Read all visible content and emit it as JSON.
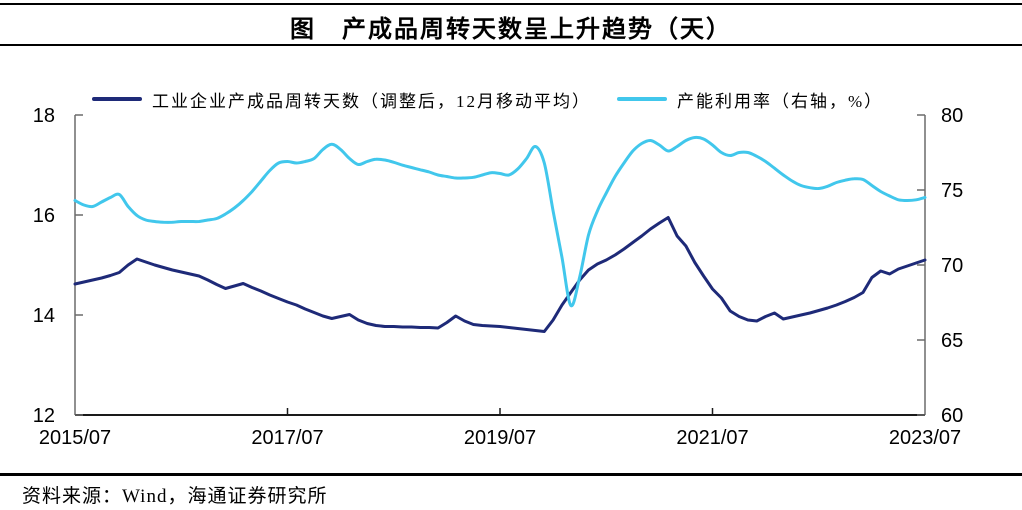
{
  "title": "图　产成品周转天数呈上升趋势（天）",
  "source": "资料来源：Wind，海通证券研究所",
  "colors": {
    "turnover_line": "#1e2a78",
    "capacity_line": "#41c7ec",
    "side_axis": "#6b6b6b",
    "bottom_axis": "#1a1a1a",
    "rule": "#000000"
  },
  "chart_data": {
    "type": "line",
    "title": "图　产成品周转天数呈上升趋势（天）",
    "x_start": "2015/07",
    "x_end": "2023/07",
    "x_freq": "monthly",
    "categories": [
      "2015/07",
      "2017/07",
      "2019/07",
      "2021/07",
      "2023/07"
    ],
    "grid": false,
    "legend_position": "top",
    "left_axis": {
      "min": 12,
      "max": 18,
      "ticks": [
        18,
        16,
        14,
        12
      ]
    },
    "right_axis": {
      "min": 60,
      "max": 80,
      "ticks": [
        80,
        75,
        70,
        65,
        60
      ]
    },
    "series": [
      {
        "name": "工业企业产成品周转天数（调整后，12月移动平均）",
        "axis": "left",
        "color": "#1e2a78",
        "smooth": false,
        "values": [
          14.62,
          14.66,
          14.7,
          14.74,
          14.79,
          14.85,
          15.0,
          15.12,
          15.06,
          15.0,
          14.95,
          14.9,
          14.86,
          14.82,
          14.78,
          14.7,
          14.61,
          14.53,
          14.58,
          14.63,
          14.55,
          14.48,
          14.4,
          14.33,
          14.26,
          14.2,
          14.12,
          14.05,
          13.98,
          13.93,
          13.97,
          14.01,
          13.9,
          13.83,
          13.79,
          13.77,
          13.77,
          13.76,
          13.76,
          13.75,
          13.75,
          13.74,
          13.85,
          13.98,
          13.88,
          13.81,
          13.79,
          13.78,
          13.77,
          13.75,
          13.73,
          13.71,
          13.69,
          13.67,
          13.9,
          14.2,
          14.45,
          14.7,
          14.9,
          15.02,
          15.1,
          15.2,
          15.32,
          15.45,
          15.58,
          15.72,
          15.84,
          15.95,
          15.58,
          15.38,
          15.05,
          14.78,
          14.52,
          14.34,
          14.08,
          13.97,
          13.9,
          13.88,
          13.97,
          14.04,
          13.92,
          13.96,
          14.0,
          14.04,
          14.09,
          14.14,
          14.2,
          14.27,
          14.35,
          14.45,
          14.75,
          14.88,
          14.82,
          14.92,
          14.98,
          15.04,
          15.1
        ]
      },
      {
        "name": "产能利用率（右轴，%）",
        "axis": "right",
        "color": "#41c7ec",
        "smooth": true,
        "values": [
          74.3,
          74.0,
          73.9,
          74.2,
          74.5,
          74.7,
          73.9,
          73.3,
          73.0,
          72.9,
          72.85,
          72.85,
          72.9,
          72.9,
          72.9,
          73.0,
          73.1,
          73.4,
          73.8,
          74.3,
          74.9,
          75.6,
          76.3,
          76.8,
          76.9,
          76.8,
          76.9,
          77.1,
          77.7,
          78.05,
          77.7,
          77.1,
          76.7,
          76.9,
          77.05,
          77.0,
          76.85,
          76.65,
          76.5,
          76.35,
          76.2,
          76.0,
          75.9,
          75.8,
          75.8,
          75.85,
          76.0,
          76.15,
          76.1,
          76.0,
          76.4,
          77.1,
          77.9,
          76.8,
          73.6,
          70.5,
          67.3,
          69.2,
          72.0,
          73.6,
          74.8,
          75.9,
          76.8,
          77.6,
          78.1,
          78.3,
          78.0,
          77.6,
          77.9,
          78.3,
          78.5,
          78.4,
          78.0,
          77.5,
          77.3,
          77.5,
          77.5,
          77.25,
          76.9,
          76.45,
          76.0,
          75.6,
          75.3,
          75.15,
          75.1,
          75.25,
          75.5,
          75.65,
          75.75,
          75.7,
          75.3,
          74.9,
          74.6,
          74.35,
          74.3,
          74.35,
          74.5
        ]
      }
    ]
  }
}
